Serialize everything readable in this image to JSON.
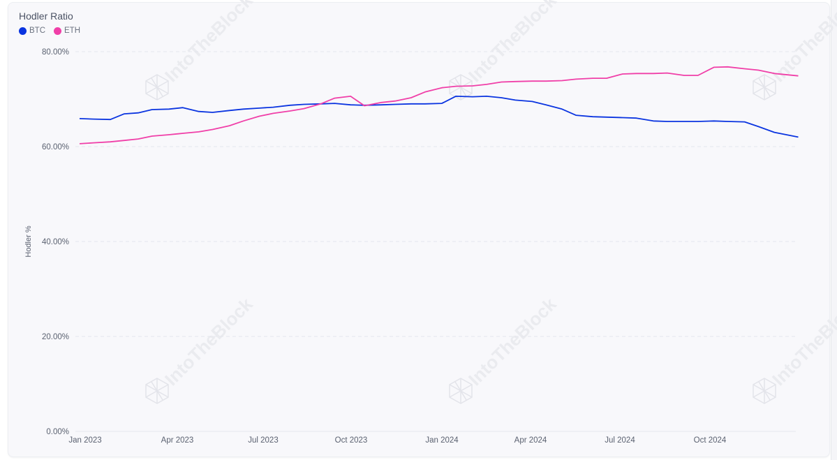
{
  "header": {
    "title": "Hodler Ratio"
  },
  "legend": [
    {
      "label": "BTC",
      "color": "#0a34e0"
    },
    {
      "label": "ETH",
      "color": "#f03fa8"
    }
  ],
  "watermark": "IntoTheBlock",
  "chart_data": {
    "type": "line",
    "title": "Hodler Ratio",
    "xlabel": "",
    "ylabel": "Hodler %",
    "ylim": [
      0,
      80
    ],
    "yticks": [
      "0.00%",
      "20.00%",
      "40.00%",
      "60.00%",
      "80.00%"
    ],
    "xticks": [
      "Jan 2023",
      "Apr 2023",
      "Jul 2023",
      "Oct 2023",
      "Jan 2024",
      "Apr 2024",
      "Jul 2024",
      "Oct 2024"
    ],
    "grid": "horizontal dashed",
    "legend_position": "top-left",
    "x": [
      "2023-01-01",
      "2023-01-15",
      "2023-02-01",
      "2023-02-15",
      "2023-03-01",
      "2023-03-15",
      "2023-04-01",
      "2023-04-15",
      "2023-05-01",
      "2023-05-15",
      "2023-06-01",
      "2023-06-15",
      "2023-07-01",
      "2023-07-15",
      "2023-08-01",
      "2023-08-15",
      "2023-09-01",
      "2023-09-15",
      "2023-10-01",
      "2023-10-15",
      "2023-11-01",
      "2023-11-15",
      "2023-12-01",
      "2023-12-15",
      "2024-01-01",
      "2024-01-15",
      "2024-02-01",
      "2024-02-15",
      "2024-03-01",
      "2024-03-15",
      "2024-04-01",
      "2024-04-15",
      "2024-05-01",
      "2024-05-15",
      "2024-06-01",
      "2024-06-15",
      "2024-07-01",
      "2024-07-15",
      "2024-08-01",
      "2024-08-15",
      "2024-09-01",
      "2024-09-15",
      "2024-10-01",
      "2024-10-15",
      "2024-11-01",
      "2024-11-15",
      "2024-12-01",
      "2024-12-25"
    ],
    "series": [
      {
        "name": "BTC",
        "color": "#0a34e0",
        "values": [
          65.9,
          65.8,
          65.7,
          66.9,
          67.1,
          67.8,
          67.9,
          68.2,
          67.4,
          67.2,
          67.6,
          67.9,
          68.1,
          68.3,
          68.7,
          68.9,
          69.0,
          69.1,
          68.8,
          68.7,
          68.8,
          68.9,
          69.0,
          69.0,
          69.1,
          70.6,
          70.5,
          70.6,
          70.3,
          69.8,
          69.5,
          68.8,
          67.9,
          66.6,
          66.3,
          66.2,
          66.1,
          66.0,
          65.4,
          65.3,
          65.3,
          65.3,
          65.4,
          65.3,
          65.2,
          64.2,
          63.0,
          62.0
        ]
      },
      {
        "name": "ETH",
        "color": "#f03fa8",
        "values": [
          60.6,
          60.8,
          61.0,
          61.3,
          61.6,
          62.2,
          62.5,
          62.8,
          63.1,
          63.6,
          64.4,
          65.4,
          66.4,
          67.0,
          67.5,
          68.0,
          69.0,
          70.2,
          70.6,
          68.6,
          69.3,
          69.6,
          70.3,
          71.5,
          72.4,
          72.7,
          72.8,
          73.1,
          73.6,
          73.7,
          73.8,
          73.8,
          73.9,
          74.2,
          74.4,
          74.4,
          75.3,
          75.4,
          75.4,
          75.5,
          75.0,
          75.0,
          76.7,
          76.8,
          76.4,
          76.1,
          75.4,
          74.9
        ]
      }
    ]
  }
}
